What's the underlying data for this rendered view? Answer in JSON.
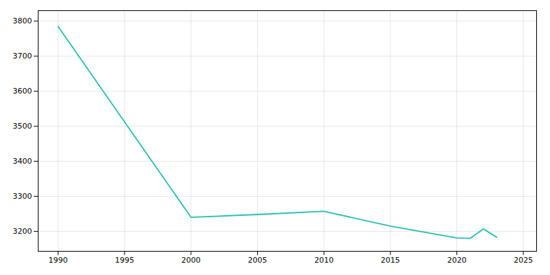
{
  "chart_data": {
    "type": "line",
    "x": [
      1990,
      2000,
      2005,
      2010,
      2015,
      2020,
      2021,
      2022,
      2023
    ],
    "values": [
      3785,
      3240,
      3248,
      3257,
      3215,
      3181,
      3180,
      3207,
      3183
    ],
    "color": "#20c0b0",
    "xlim": [
      1988.5,
      2026
    ],
    "ylim": [
      3143,
      3830
    ],
    "xticks": [
      1990,
      1995,
      2000,
      2005,
      2010,
      2015,
      2020,
      2025
    ],
    "yticks": [
      3200,
      3300,
      3400,
      3500,
      3600,
      3700,
      3800
    ],
    "grid": true
  }
}
